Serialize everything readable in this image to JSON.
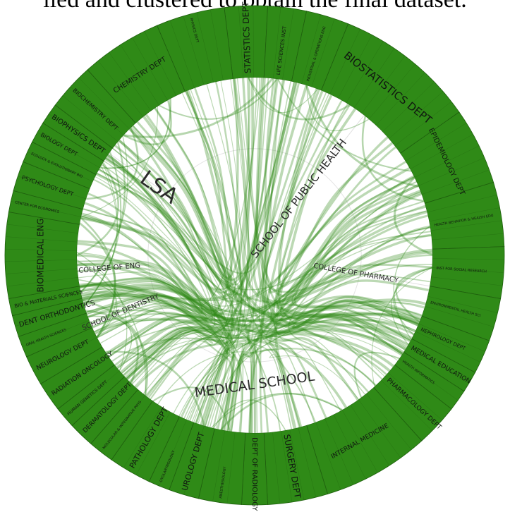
{
  "caption": "lied and clustered to obtain the final dataset.",
  "colors": {
    "ring": "#2f8a17",
    "ring_edge": "#1f5f0e",
    "chord": "#2f8a17",
    "inner_bg": "#ffffff"
  },
  "schools": [
    {
      "name": "LSA",
      "angle": -55,
      "size": 30
    },
    {
      "name": "SCHOOL OF PUBLIC HEALTH",
      "angle": 38,
      "size": 15
    },
    {
      "name": "COLLEGE OF ENG",
      "angle": -95,
      "size": 10
    },
    {
      "name": "SCHOOL OF DENTISTRY",
      "angle": -113,
      "size": 10
    },
    {
      "name": "COLLEGE OF PHARMACY",
      "angle": 100,
      "size": 10
    },
    {
      "name": "MEDICAL SCHOOL",
      "angle": 180,
      "size": 19
    }
  ],
  "departments": [
    {
      "name": "STATISTICS DEPT",
      "start": -7,
      "end": 3,
      "size": 12
    },
    {
      "name": "LIFE SCIENCES INST",
      "start": 3,
      "end": 12,
      "size": 7
    },
    {
      "name": "INDUSTRIAL & OPERATIONS ENG",
      "start": 12,
      "end": 22,
      "size": 5
    },
    {
      "name": "BIOSTATISTICS DEPT",
      "start": 22,
      "end": 55,
      "size": 15
    },
    {
      "name": "EPIDEMIOLOGY DEPT",
      "start": 55,
      "end": 73,
      "size": 10
    },
    {
      "name": "HEALTH BEHAVIOR & HEALTH EDU",
      "start": 73,
      "end": 88,
      "size": 5
    },
    {
      "name": "INST FOR SOCIAL RESEARCH",
      "start": 88,
      "end": 100,
      "size": 5
    },
    {
      "name": "ENVIRONMENTAL HEALTH SCI",
      "start": 100,
      "end": 110,
      "size": 5
    },
    {
      "name": "NEPHROLOGY DEPT",
      "start": 110,
      "end": 118,
      "size": 7
    },
    {
      "name": "MEDICAL EDUCATION",
      "start": 118,
      "end": 123,
      "size": 9
    },
    {
      "name": "HEALTH INFORMATICS",
      "start": 123,
      "end": 128,
      "size": 5
    },
    {
      "name": "PHARMACOLOGY DEPT",
      "start": 128,
      "end": 138,
      "size": 9
    },
    {
      "name": "INTERNAL MEDICINE",
      "start": 138,
      "end": 163,
      "size": 9
    },
    {
      "name": "SURGERY DEPT",
      "start": 163,
      "end": 177,
      "size": 12
    },
    {
      "name": "DEPT OF RADIOLOGY",
      "start": 177,
      "end": 183,
      "size": 10
    },
    {
      "name": "ANESTHESIOLOGY",
      "start": 183,
      "end": 193,
      "size": 5
    },
    {
      "name": "UROLOGY DEPT",
      "start": 193,
      "end": 200,
      "size": 11
    },
    {
      "name": "OTOLARYNGOLOGY",
      "start": 200,
      "end": 205,
      "size": 5
    },
    {
      "name": "PATHOLOGY DEPT",
      "start": 205,
      "end": 215,
      "size": 11
    },
    {
      "name": "MOLECULAR & INTEGRATIVE PHYS",
      "start": 215,
      "end": 221,
      "size": 5
    },
    {
      "name": "DERMATOLOGY DEPT",
      "start": 221,
      "end": 227,
      "size": 9
    },
    {
      "name": "HUMAN GENETICS DEPT",
      "start": 227,
      "end": 232,
      "size": 6
    },
    {
      "name": "RADIATION ONCOLOGY",
      "start": 232,
      "end": 239,
      "size": 9
    },
    {
      "name": "NEUROLOGY DEPT",
      "start": 239,
      "end": 246,
      "size": 9
    },
    {
      "name": "ORAL HEALTH SCIENCES",
      "start": 246,
      "end": 251,
      "size": 5
    },
    {
      "name": "DENT ORTHODONTICS",
      "start": 251,
      "end": 256,
      "size": 10
    },
    {
      "name": "BIO & MATERIALS SCIENCES",
      "start": 256,
      "end": 260,
      "size": 7
    },
    {
      "name": "BIOMEDICAL ENG",
      "start": 260,
      "end": 280,
      "size": 12
    },
    {
      "name": "CENTER FOR ECONOMICS",
      "start": 280,
      "end": 285,
      "size": 5
    },
    {
      "name": "PSYCHOLOGY DEPT",
      "start": 285,
      "end": 292,
      "size": 8
    },
    {
      "name": "ECOLOGY & EVOLUTIONARY BIO",
      "start": 292,
      "end": 297,
      "size": 5
    },
    {
      "name": "BIOLOGY DEPT",
      "start": 297,
      "end": 302,
      "size": 8
    },
    {
      "name": "BIOPHYSICS DEPT",
      "start": 302,
      "end": 307,
      "size": 10
    },
    {
      "name": "BIOCHEMISTRY DEPT",
      "start": 307,
      "end": 318,
      "size": 8
    },
    {
      "name": "CHEMISTRY DEPT",
      "start": 318,
      "end": 337,
      "size": 10
    },
    {
      "name": "PHYSICS DEPT",
      "start": 337,
      "end": 353,
      "size": 5
    }
  ]
}
